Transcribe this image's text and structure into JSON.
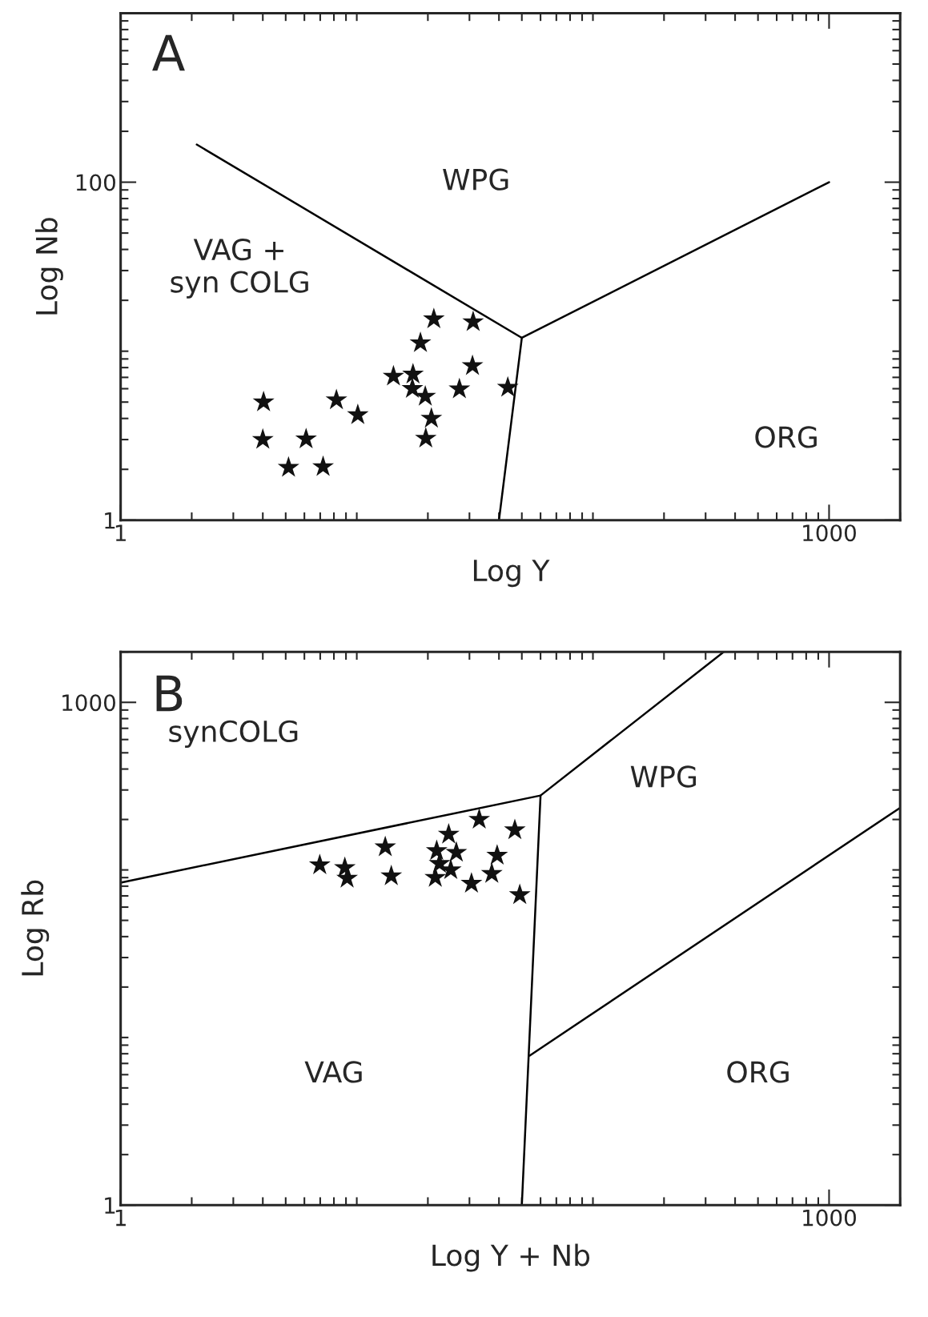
{
  "chart_data": [
    {
      "type": "scatter",
      "title": "A",
      "xlabel": "Log Y",
      "ylabel": "Log Nb",
      "log": "xy",
      "xlim": [
        1,
        2000
      ],
      "ylim": [
        1,
        1000
      ],
      "xticks": [
        1,
        1000
      ],
      "yticks": [
        1,
        100
      ],
      "series": [
        {
          "marker": "star",
          "color": "#111111",
          "x": [
            4.03,
            4.0,
            5.14,
            6.1,
            7.2,
            8.2,
            10.1,
            14.3,
            17.3,
            17.2,
            19.5,
            20.7,
            19.6,
            18.6,
            21.2,
            31.1,
            30.9,
            27.2,
            43.6
          ],
          "values": [
            5.0,
            3.0,
            2.05,
            3.02,
            2.07,
            5.14,
            4.2,
            7.1,
            7.3,
            6.0,
            5.4,
            4.0,
            3.05,
            11.2,
            15.5,
            14.9,
            8.2,
            5.97,
            6.1
          ]
        },
        {
          "type": "line",
          "color": "#000000",
          "x": [
            2.1,
            50,
            1000
          ],
          "values": [
            167,
            12,
            100
          ]
        },
        {
          "type": "line",
          "color": "#000000",
          "x": [
            50,
            40
          ],
          "values": [
            12,
            1
          ]
        }
      ],
      "annotations": [
        "WPG",
        "VAG +\nsyn COLG",
        "ORG"
      ]
    },
    {
      "type": "scatter",
      "title": "B",
      "xlabel": "Log Y + Nb",
      "ylabel": "Log Rb",
      "log": "xy",
      "xlim": [
        1,
        2000
      ],
      "ylim": [
        1,
        2000
      ],
      "xticks": [
        1,
        1000
      ],
      "yticks": [
        1,
        1000
      ],
      "series": [
        {
          "marker": "star",
          "color": "#111111",
          "x": [
            6.97,
            8.9,
            9.1,
            13.2,
            14.0,
            24.5,
            21.8,
            26.4,
            22.4,
            25.0,
            21.5,
            33.0,
            46.7,
            39.3,
            30.6,
            37.3,
            49
          ],
          "values": [
            107,
            103,
            89,
            137,
            92,
            163,
            130,
            127,
            109,
            100,
            90,
            200,
            173,
            122,
            83,
            95,
            71
          ]
        },
        {
          "type": "line",
          "color": "#000000",
          "x": [
            1,
            60,
            358
          ],
          "values": [
            84,
            278,
            2000
          ]
        },
        {
          "type": "line",
          "color": "#000000",
          "x": [
            60,
            50
          ],
          "values": [
            278,
            1
          ]
        },
        {
          "type": "line",
          "color": "#000000",
          "x": [
            54,
            2000
          ],
          "values": [
            7.8,
            235
          ]
        }
      ],
      "annotations": [
        "synCOLG",
        "WPG",
        "VAG",
        "ORG"
      ]
    }
  ]
}
